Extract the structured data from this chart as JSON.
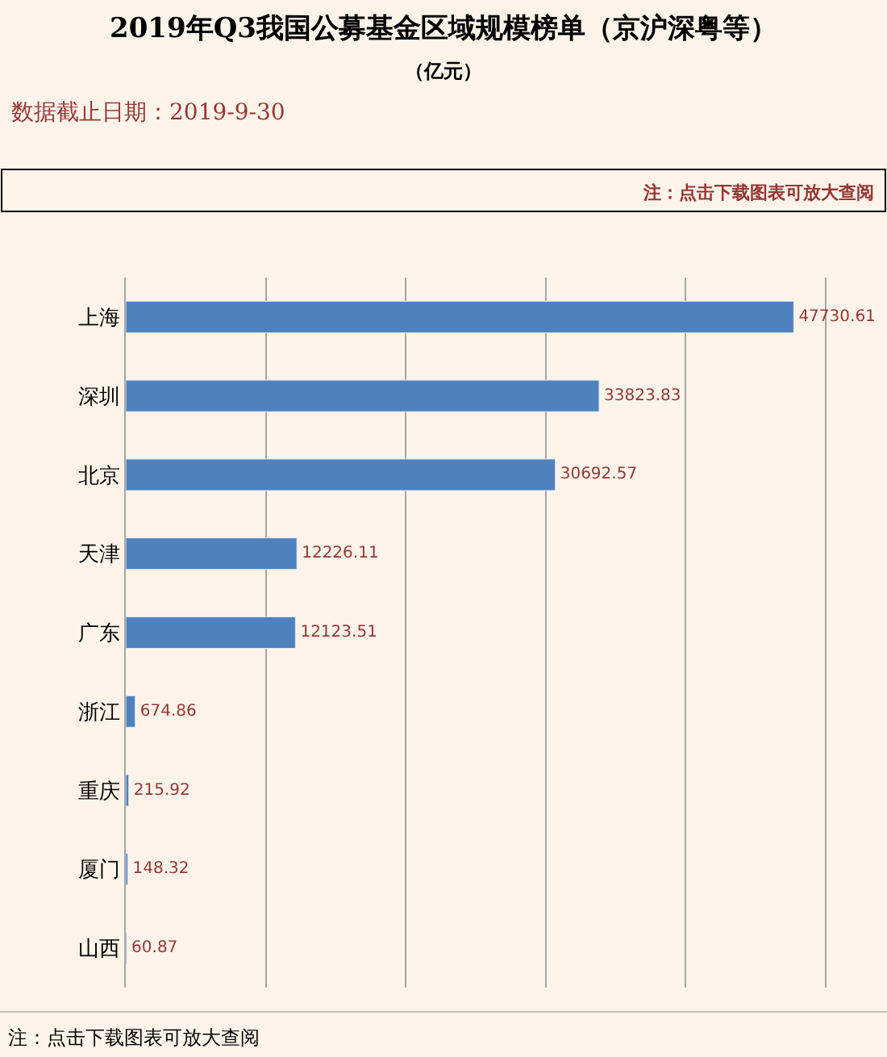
{
  "chart_data": {
    "type": "bar",
    "orientation": "horizontal",
    "title": "2019年Q3我国公募基金区域规模榜单（京沪深粤等）",
    "subtitle": "（亿元）",
    "annotations": [
      "数据截止日期：2019-9-30",
      "注：点击下载图表可放大查阅",
      "注：点击下载图表可放大查阅"
    ],
    "categories": [
      "上海",
      "深圳",
      "北京",
      "天津",
      "广东",
      "浙江",
      "重庆",
      "厦门",
      "山西"
    ],
    "values": [
      47730.61,
      33823.83,
      30692.57,
      12226.11,
      12123.51,
      674.86,
      215.92,
      148.32,
      60.87
    ],
    "color": "#4f81bd",
    "data_labels": true,
    "tick_labels": "y",
    "grid": "x",
    "legend": false
  }
}
